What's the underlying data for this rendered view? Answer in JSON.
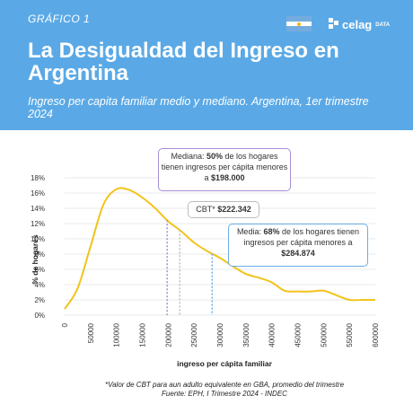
{
  "header": {
    "label": "GRÁFICO 1",
    "title": "La Desigualdad del Ingreso en Argentina",
    "subtitle": "Ingreso per capita familiar medio y mediano. Argentina, 1er trimestre 2024",
    "logo_text": "celag",
    "logo_sub": "DATA",
    "flag_icon": "argentina-flag-icon"
  },
  "annotations": {
    "median": {
      "pre": "Mediana: ",
      "pct": "50%",
      "mid": " de los hogares tienen ingresos per cápita menores a ",
      "value": "$198.000"
    },
    "cbt": {
      "pre": "CBT* ",
      "value": "$222.342"
    },
    "mean": {
      "pre": "Media: ",
      "pct": "68%",
      "mid": " de los hogares tienen ingresos per cápita menores a ",
      "value": "$284.874"
    }
  },
  "footnote": {
    "line1": "*Valor de CBT para aun adulto equivalente en GBA, promedio del trimestre",
    "line2": "Fuente: EPH, I Trimestre 2024 - INDEC"
  },
  "colors": {
    "header": "#5aa9e6",
    "curve": "#f2c31b",
    "median": "#a48fd4",
    "cbt": "#bdbdbd",
    "mean": "#6aaee8"
  },
  "chart_data": {
    "type": "line",
    "xlabel": "ingreso per cápita familiar",
    "ylabel": "% de hogares",
    "xlim": [
      0,
      600000
    ],
    "ylim": [
      0,
      18
    ],
    "x_ticks": [
      0,
      50000,
      100000,
      150000,
      200000,
      250000,
      300000,
      350000,
      400000,
      450000,
      500000,
      550000,
      600000
    ],
    "x_tick_labels": [
      "0",
      "50000",
      "100000",
      "150000",
      "200000",
      "250000",
      "300000",
      "350000",
      "400000",
      "450000",
      "500000",
      "550000",
      "600000"
    ],
    "y_ticks": [
      0,
      2,
      4,
      6,
      8,
      10,
      12,
      14,
      16,
      18
    ],
    "y_tick_labels": [
      "0%",
      "2%",
      "4%",
      "6%",
      "8%",
      "10%",
      "12%",
      "14%",
      "16%",
      "18%"
    ],
    "series": [
      {
        "x": [
          0,
          25000,
          50000,
          75000,
          100000,
          125000,
          150000,
          175000,
          200000,
          225000,
          250000,
          275000,
          300000,
          325000,
          350000,
          375000,
          400000,
          425000,
          450000,
          475000,
          500000,
          525000,
          550000,
          575000,
          600000
        ],
        "y": [
          0.8,
          3.5,
          9.0,
          14.5,
          16.5,
          16.4,
          15.4,
          14.0,
          12.3,
          11.0,
          9.5,
          8.4,
          7.5,
          6.4,
          5.4,
          4.9,
          4.3,
          3.2,
          3.1,
          3.1,
          3.2,
          2.6,
          2.0,
          2.0,
          2.0
        ]
      }
    ],
    "markers": [
      {
        "name": "Mediana",
        "x": 198000,
        "color": "#a48fd4"
      },
      {
        "name": "CBT",
        "x": 222342,
        "color": "#bdbdbd"
      },
      {
        "name": "Media",
        "x": 284874,
        "color": "#6aaee8"
      }
    ]
  }
}
